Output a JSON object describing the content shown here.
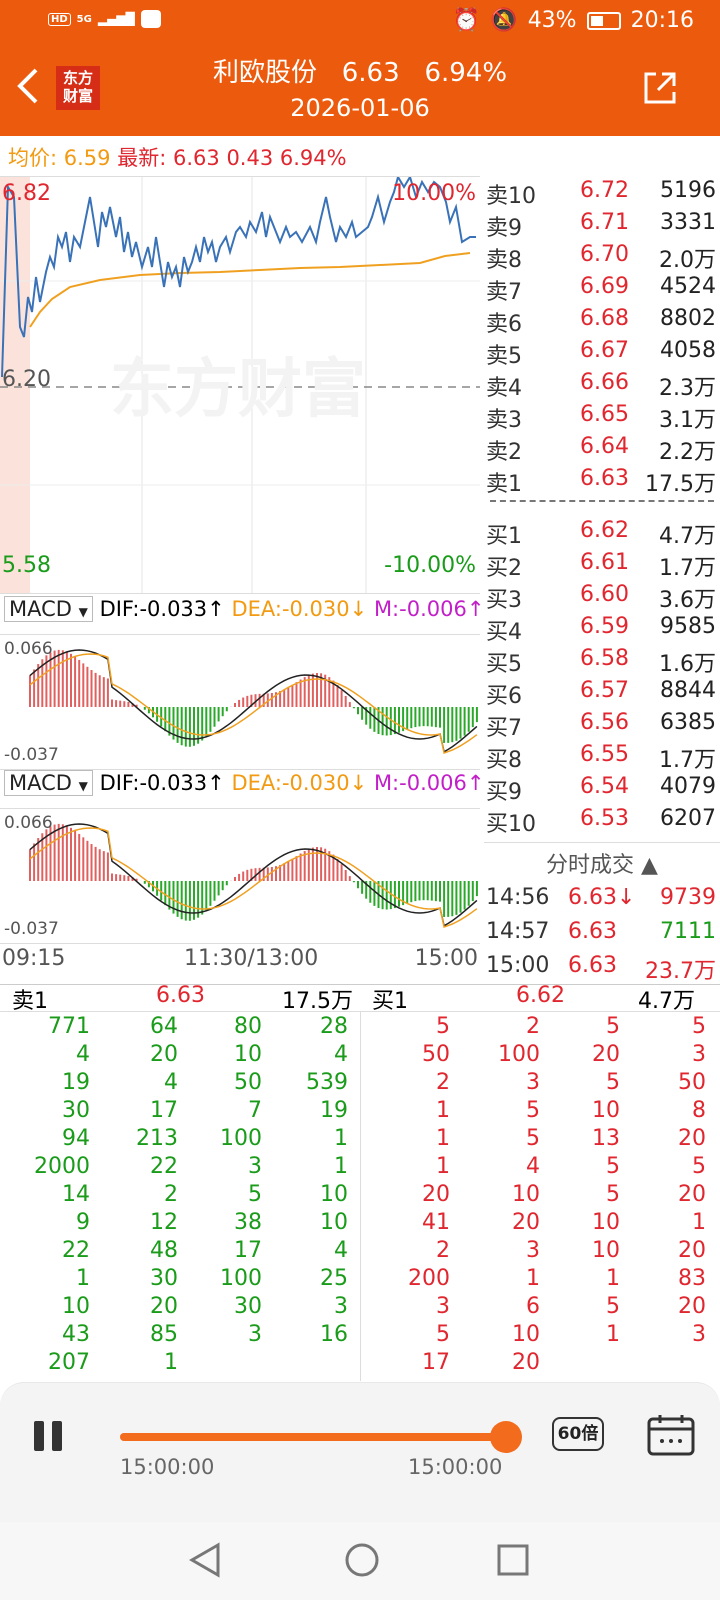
{
  "status": {
    "net_labels": [
      "HD",
      "5G"
    ],
    "battery": "43%",
    "time": "20:16"
  },
  "header": {
    "logo_text": "东方财富",
    "stock_name": "利欧股份",
    "price": "6.63",
    "change_pct": "6.94%",
    "date": "2026-01-06"
  },
  "summary": {
    "avg_label": "均价:",
    "avg": "6.59",
    "latest_label": "最新:",
    "latest": "6.63",
    "change": "0.43",
    "change_pct": "6.94%"
  },
  "chart": {
    "high_price": "6.82",
    "high_pct": "10.00%",
    "low_price": "5.58",
    "low_pct": "-10.00%",
    "ref_price": "6.20",
    "watermark": "东方财富",
    "time_start": "09:15",
    "time_mid": "11:30/13:00",
    "time_end": "15:00"
  },
  "macd_panels": [
    {
      "name": "MACD",
      "dif": "DIF:-0.033↑",
      "dea": "DEA:-0.030↓",
      "m": "M:-0.006↑",
      "top": "0.066",
      "bottom": "-0.037"
    },
    {
      "name": "MACD",
      "dif": "DIF:-0.033↑",
      "dea": "DEA:-0.030↓",
      "m": "M:-0.006↑",
      "top": "0.066",
      "bottom": "-0.037"
    }
  ],
  "asks": [
    {
      "name": "卖10",
      "price": "6.72",
      "vol": "5196"
    },
    {
      "name": "卖9",
      "price": "6.71",
      "vol": "3331"
    },
    {
      "name": "卖8",
      "price": "6.70",
      "vol": "2.0万"
    },
    {
      "name": "卖7",
      "price": "6.69",
      "vol": "4524"
    },
    {
      "name": "卖6",
      "price": "6.68",
      "vol": "8802"
    },
    {
      "name": "卖5",
      "price": "6.67",
      "vol": "4058"
    },
    {
      "name": "卖4",
      "price": "6.66",
      "vol": "2.3万"
    },
    {
      "name": "卖3",
      "price": "6.65",
      "vol": "3.1万"
    },
    {
      "name": "卖2",
      "price": "6.64",
      "vol": "2.2万"
    },
    {
      "name": "卖1",
      "price": "6.63",
      "vol": "17.5万"
    }
  ],
  "bids": [
    {
      "name": "买1",
      "price": "6.62",
      "vol": "4.7万"
    },
    {
      "name": "买2",
      "price": "6.61",
      "vol": "1.7万"
    },
    {
      "name": "买3",
      "price": "6.60",
      "vol": "3.6万"
    },
    {
      "name": "买4",
      "price": "6.59",
      "vol": "9585"
    },
    {
      "name": "买5",
      "price": "6.58",
      "vol": "1.6万"
    },
    {
      "name": "买6",
      "price": "6.57",
      "vol": "8844"
    },
    {
      "name": "买7",
      "price": "6.56",
      "vol": "6385"
    },
    {
      "name": "买8",
      "price": "6.55",
      "vol": "1.7万"
    },
    {
      "name": "买9",
      "price": "6.54",
      "vol": "4079"
    },
    {
      "name": "买10",
      "price": "6.53",
      "vol": "6207"
    }
  ],
  "trades": {
    "title": "分时成交",
    "rows": [
      {
        "time": "14:56",
        "price": "6.63↓",
        "vol": "9739"
      },
      {
        "time": "14:57",
        "price": "6.63",
        "vol": "7111"
      },
      {
        "time": "15:00",
        "price": "6.63",
        "vol": "23.7万"
      }
    ]
  },
  "queue": {
    "sell_label": "卖1",
    "sell_price": "6.63",
    "sell_vol": "17.5万",
    "buy_label": "买1",
    "buy_price": "6.62",
    "buy_vol": "4.7万",
    "sell_cols": [
      [
        "771",
        "4",
        "19",
        "30",
        "94",
        "2000",
        "14",
        "9",
        "22",
        "1",
        "10",
        "43",
        "207"
      ],
      [
        "64",
        "20",
        "4",
        "17",
        "213",
        "22",
        "2",
        "12",
        "48",
        "30",
        "20",
        "85",
        "1"
      ],
      [
        "80",
        "10",
        "50",
        "7",
        "100",
        "3",
        "5",
        "38",
        "17",
        "100",
        "30",
        "3"
      ],
      [
        "28",
        "4",
        "539",
        "19",
        "1",
        "1",
        "10",
        "10",
        "4",
        "25",
        "3",
        "16"
      ]
    ],
    "buy_cols": [
      [
        "5",
        "50",
        "2",
        "1",
        "1",
        "1",
        "20",
        "41",
        "2",
        "200",
        "3",
        "5",
        "17"
      ],
      [
        "2",
        "100",
        "3",
        "5",
        "5",
        "4",
        "10",
        "20",
        "3",
        "1",
        "6",
        "10",
        "20"
      ],
      [
        "5",
        "20",
        "5",
        "10",
        "13",
        "5",
        "5",
        "10",
        "10",
        "1",
        "5",
        "1"
      ],
      [
        "5",
        "3",
        "50",
        "8",
        "20",
        "5",
        "20",
        "1",
        "20",
        "83",
        "20",
        "3"
      ]
    ]
  },
  "player": {
    "time_left": "15:00:00",
    "time_right": "15:00:00",
    "speed": "60倍",
    "progress": 1.0
  }
}
